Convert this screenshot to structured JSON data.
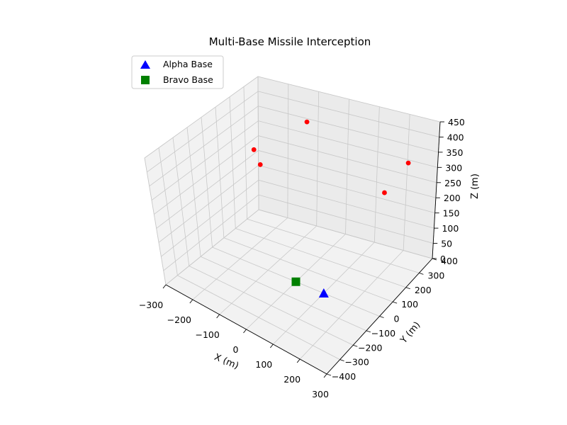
{
  "chart_data": {
    "type": "scatter3d",
    "title": "Multi-Base Missile Interception",
    "xlabel": "X (m)",
    "ylabel": "Y (m)",
    "zlabel": "Z (m)",
    "xlim": [
      -300,
      300
    ],
    "ylim": [
      -400,
      400
    ],
    "zlim": [
      0,
      450
    ],
    "xticks": [
      "−300",
      "−200",
      "−100",
      "0",
      "100",
      "200",
      "300"
    ],
    "yticks": [
      "−400",
      "−300",
      "−200",
      "−100",
      "0",
      "100",
      "200",
      "300",
      "400"
    ],
    "zticks": [
      "0",
      "50",
      "100",
      "150",
      "200",
      "250",
      "300",
      "350",
      "400",
      "450"
    ],
    "grid": true,
    "legend_position": "top-left",
    "bases": [
      {
        "name": "Alpha Base",
        "marker": "triangle",
        "color": "#0000ff",
        "x": 100,
        "y": 0,
        "z": 0
      },
      {
        "name": "Bravo Base",
        "marker": "square",
        "color": "#008000",
        "x": 0,
        "y": 0,
        "z": 0
      }
    ],
    "missiles": {
      "color": "#ff0000",
      "points": [
        {
          "x": -250,
          "y": 300,
          "z": 200
        },
        {
          "x": -200,
          "y": 150,
          "z": 320
        },
        {
          "x": -100,
          "y": 320,
          "z": 380
        },
        {
          "x": 150,
          "y": 350,
          "z": 200
        },
        {
          "x": 250,
          "y": 300,
          "z": 350
        }
      ]
    }
  }
}
